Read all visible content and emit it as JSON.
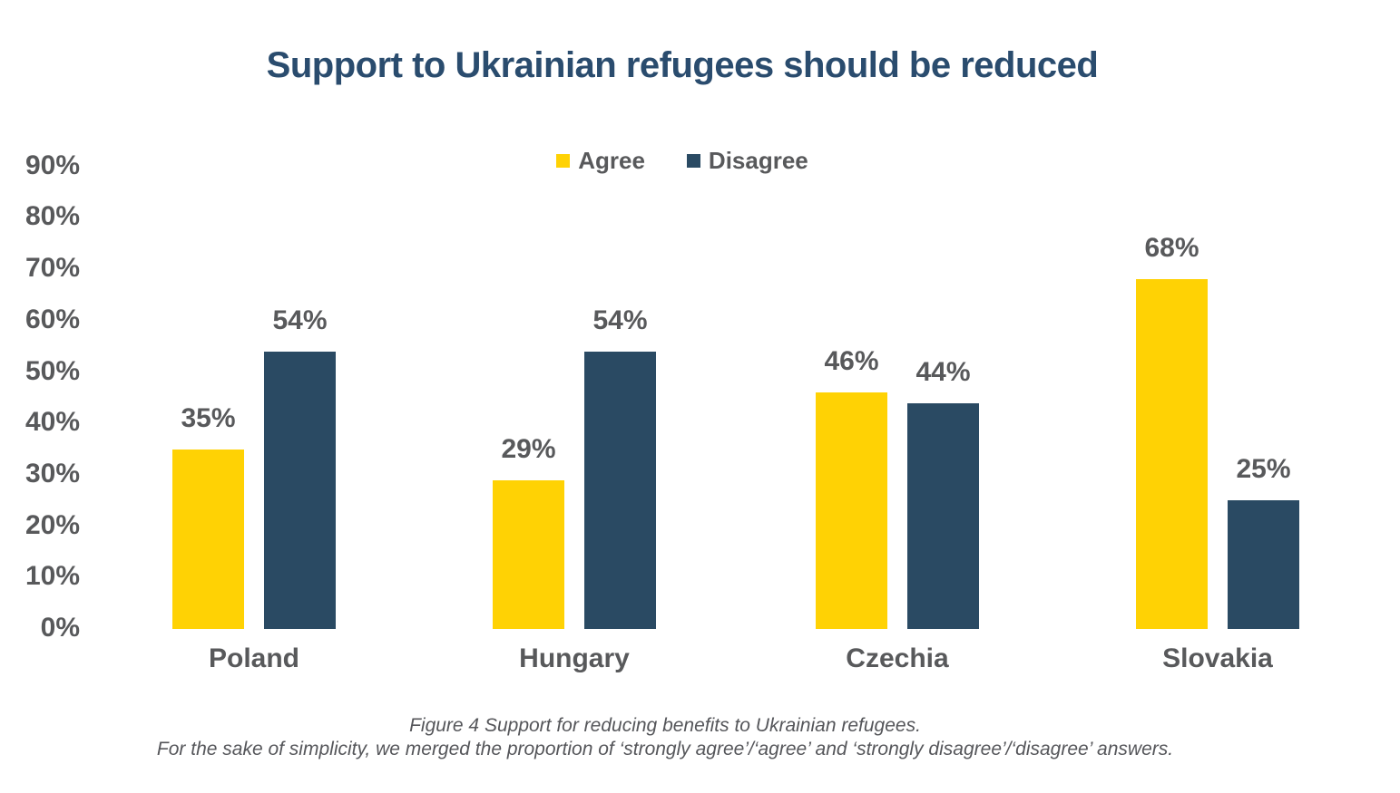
{
  "chart_data": {
    "type": "bar",
    "title": "Support to Ukrainian refugees should be reduced",
    "categories": [
      "Poland",
      "Hungary",
      "Czechia",
      "Slovakia"
    ],
    "series": [
      {
        "name": "Agree",
        "color": "#FFD204",
        "values": [
          35,
          29,
          46,
          68
        ]
      },
      {
        "name": "Disagree",
        "color": "#2A4A63",
        "values": [
          54,
          54,
          44,
          25
        ]
      }
    ],
    "value_suffix": "%",
    "value_labels": true,
    "xlabel": "",
    "ylabel": "",
    "ylim": [
      0,
      90
    ],
    "ytick_step": 10,
    "yticks": [
      "90%",
      "80%",
      "70%",
      "60%",
      "50%",
      "40%",
      "30%",
      "20%",
      "10%",
      "0%"
    ],
    "grid": false,
    "axis_lines": false,
    "legend_position": "top-center"
  },
  "caption": {
    "line1": "Figure 4 Support for reducing benefits to Ukrainian refugees.",
    "line2": "For the sake of simplicity, we merged the proportion of ‘strongly agree’/‘agree’ and ‘strongly disagree’/‘disagree’ answers."
  },
  "colors": {
    "agree": "#FFD204",
    "disagree": "#2A4A63",
    "title_text": "#2A4C6E",
    "axis_text": "#58595B",
    "caption_text": "#55565A",
    "background": "#FFFFFF"
  }
}
